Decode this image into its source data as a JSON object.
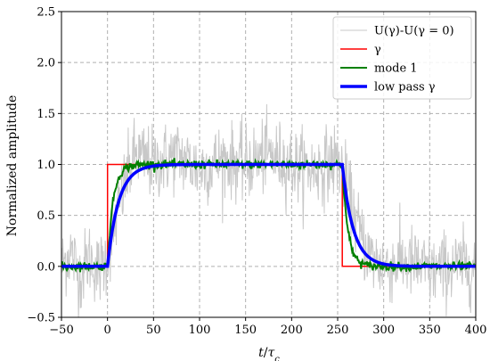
{
  "chart_data": {
    "type": "line",
    "title": "",
    "xlabel": "t/τc",
    "ylabel": "Normalized amplitude",
    "xlim": [
      -50,
      400
    ],
    "ylim": [
      -0.5,
      2.5
    ],
    "grid": true,
    "grid_style": "dashed",
    "legend_position": "top-right",
    "x_ticks": [
      -50,
      0,
      50,
      100,
      150,
      200,
      250,
      300,
      350,
      400
    ],
    "x_tick_labels": [
      "−50",
      "0",
      "50",
      "100",
      "150",
      "200",
      "250",
      "300",
      "350",
      "400"
    ],
    "y_ticks": [
      -0.5,
      0.0,
      0.5,
      1.0,
      1.5,
      2.0,
      2.5
    ],
    "y_tick_labels": [
      "−0.5",
      "0.0",
      "0.5",
      "1.0",
      "1.5",
      "2.0",
      "2.5"
    ],
    "step_on": 0,
    "step_off": 255,
    "series": [
      {
        "name": "U(γ)-U(γ = 0)",
        "color": "#c8c8c8",
        "linewidth": 1,
        "description_points": {
          "x": [
            -50,
            -40,
            -30,
            -20,
            -10,
            0,
            10,
            20,
            30,
            40,
            50,
            75,
            100,
            125,
            150,
            175,
            200,
            225,
            250,
            255,
            265,
            275,
            285,
            300,
            325,
            350,
            375,
            400
          ],
          "y": [
            0.0,
            0.15,
            -0.1,
            0.1,
            -0.05,
            0.1,
            0.5,
            0.85,
            1.1,
            1.05,
            1.0,
            1.1,
            0.95,
            1.05,
            1.0,
            1.1,
            1.0,
            0.95,
            1.05,
            0.95,
            0.6,
            0.3,
            0.1,
            0.0,
            0.05,
            -0.05,
            0.0,
            0.0
          ]
        },
        "noise_amplitude": 0.18
      },
      {
        "name": "γ",
        "color": "#ff0000",
        "linewidth": 1.5,
        "x": [
          -50,
          0,
          0,
          255,
          255,
          400
        ],
        "y": [
          0,
          0,
          1,
          1,
          0,
          0
        ]
      },
      {
        "name": "mode 1",
        "color": "#008000",
        "linewidth": 2,
        "time_constant": 6,
        "noise_amplitude": 0.02
      },
      {
        "name": "low pass γ",
        "color": "#0000ff",
        "linewidth": 3.5,
        "time_constant": 12
      }
    ]
  }
}
